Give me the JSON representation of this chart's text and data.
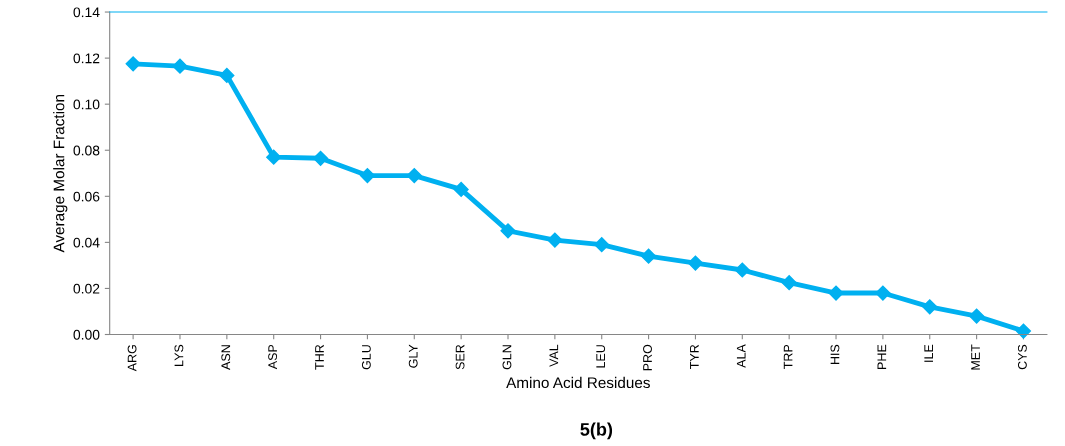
{
  "chart_data": {
    "type": "line",
    "title": "5(b)",
    "xlabel": "Amino Acid Residues",
    "ylabel": "Average Molar Fraction",
    "categories": [
      "ARG",
      "LYS",
      "ASN",
      "ASP",
      "THR",
      "GLU",
      "GLY",
      "SER",
      "GLN",
      "VAL",
      "LEU",
      "PRO",
      "TYR",
      "ALA",
      "TRP",
      "HIS",
      "PHE",
      "ILE",
      "MET",
      "CYS"
    ],
    "series": [
      {
        "color": "#00b0f0",
        "values": [
          0.1175,
          0.1165,
          0.1125,
          0.077,
          0.0765,
          0.069,
          0.069,
          0.063,
          0.045,
          0.041,
          0.039,
          0.034,
          0.031,
          0.028,
          0.0225,
          0.018,
          0.018,
          0.012,
          0.008,
          0.0015
        ]
      }
    ],
    "ylim": [
      0,
      0.14
    ],
    "yticks": [
      {
        "value": 0,
        "label": "0.00"
      },
      {
        "value": 0.02,
        "label": "0.02"
      },
      {
        "value": 0.04,
        "label": "0.04"
      },
      {
        "value": 0.06,
        "label": "0.06"
      },
      {
        "value": 0.08,
        "label": "0.08"
      },
      {
        "value": 0.1,
        "label": "0.10"
      },
      {
        "value": 0.12,
        "label": "0.12"
      },
      {
        "value": 0.14,
        "label": "0.14"
      }
    ],
    "marker": "diamond",
    "line_style": "solid",
    "grid": false,
    "legend": false
  }
}
